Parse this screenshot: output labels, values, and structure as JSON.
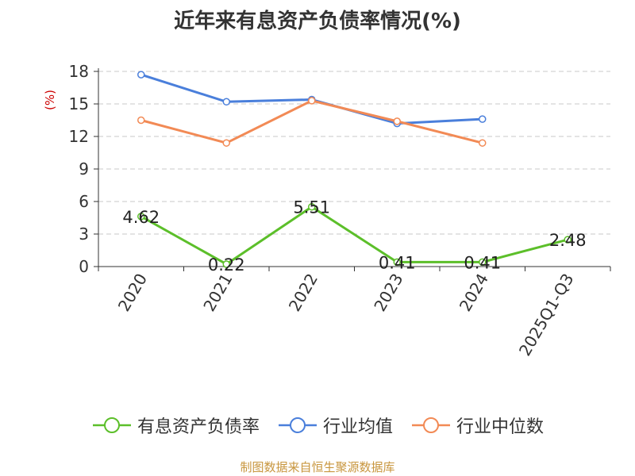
{
  "chart_data": {
    "type": "line",
    "title": "近年来有息资产负债率情况(%)",
    "ylabel": "(%)",
    "categories": [
      "2020",
      "2021",
      "2022",
      "2023",
      "2024",
      "2025Q1-Q3"
    ],
    "ylim": [
      0,
      18
    ],
    "yticks": [
      0,
      3,
      6,
      9,
      12,
      15,
      18
    ],
    "grid": true,
    "legend_position": "bottom",
    "series": [
      {
        "name": "有息资产负债率",
        "color": "#5cbf2a",
        "values": [
          4.62,
          0.22,
          5.51,
          0.41,
          0.41,
          2.48
        ],
        "labels": [
          "4.62",
          "0.22",
          "5.51",
          "0.41",
          "0.41",
          "2.48"
        ]
      },
      {
        "name": "行业均值",
        "color": "#4a7fdb",
        "values": [
          17.7,
          15.2,
          15.4,
          13.2,
          13.6,
          null
        ]
      },
      {
        "name": "行业中位数",
        "color": "#f28a55",
        "values": [
          13.5,
          11.4,
          15.3,
          13.4,
          11.4,
          null
        ]
      }
    ]
  },
  "source": "制图数据来自恒生聚源数据库"
}
